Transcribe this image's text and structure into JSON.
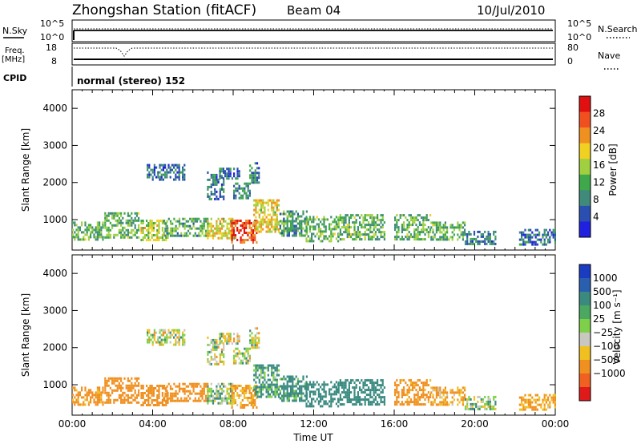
{
  "header": {
    "station": "Zhongshan Station (fitACF)",
    "beam": "Beam 04",
    "date": "10/Jul/2010"
  },
  "status_panels": {
    "nsky_label": "N.Sky",
    "nsearch_label": "N.Search",
    "top_left_ticks": [
      "10^5",
      "10^0"
    ],
    "top_right_ticks": [
      "10^5",
      "10^0"
    ],
    "freq_label": "Freq.",
    "freq_unit": "[MHz]",
    "freq_ticks": [
      "18",
      "8"
    ],
    "nave_label": "Nave",
    "nave_ticks": [
      "80",
      "0"
    ],
    "cpid_label": "CPID",
    "cpid_text": "normal (stereo) 152"
  },
  "colors": {
    "power_scale": [
      "#2020e0",
      "#2a4fb0",
      "#3f8a7a",
      "#3fa84a",
      "#a0d040",
      "#f0d020",
      "#f09020",
      "#f05020",
      "#e01010"
    ],
    "velocity_scale": [
      "#1a3cc0",
      "#2a5fb0",
      "#3a8a80",
      "#4aa860",
      "#7ed04a",
      "#c8c8c0",
      "#f0c020",
      "#f09020",
      "#f06020",
      "#e01a1a"
    ],
    "velocity_gray": "#c8c8c0"
  },
  "chart_data": [
    {
      "type": "heatmap",
      "panel": "power",
      "ylabel": "Slant Range [km]",
      "ylim": [
        180,
        4500
      ],
      "yticks": [
        1000,
        2000,
        3000,
        4000
      ],
      "xlim": [
        0,
        24
      ],
      "xticks": [
        "00:00",
        "04:00",
        "08:00",
        "12:00",
        "16:00",
        "20:00",
        "00:00"
      ],
      "colorbar_label": "Power [dB]",
      "colorbar_ticks": [
        "28",
        "24",
        "20",
        "16",
        "12",
        "8",
        "4"
      ],
      "colorbar_range": [
        0,
        30
      ],
      "regions": [
        {
          "t": [
            3.7,
            5.6
          ],
          "r": [
            2050,
            2500
          ],
          "v": 6
        },
        {
          "t": [
            6.7,
            7.5
          ],
          "r": [
            1550,
            2300
          ],
          "v": 7
        },
        {
          "t": [
            7.3,
            8.3
          ],
          "r": [
            2100,
            2400
          ],
          "v": 7
        },
        {
          "t": [
            8.0,
            8.8
          ],
          "r": [
            1600,
            2000
          ],
          "v": 8
        },
        {
          "t": [
            8.8,
            9.3
          ],
          "r": [
            2000,
            2550
          ],
          "v": 8
        },
        {
          "t": [
            0.0,
            1.5
          ],
          "r": [
            450,
            950
          ],
          "v": 12
        },
        {
          "t": [
            1.6,
            3.3
          ],
          "r": [
            500,
            1200
          ],
          "v": 12
        },
        {
          "t": [
            3.4,
            4.8
          ],
          "r": [
            450,
            1000
          ],
          "v": 16
        },
        {
          "t": [
            4.5,
            6.7
          ],
          "r": [
            550,
            1050
          ],
          "v": 11
        },
        {
          "t": [
            6.7,
            8.1
          ],
          "r": [
            500,
            1050
          ],
          "v": 18
        },
        {
          "t": [
            7.9,
            9.2
          ],
          "r": [
            400,
            1000
          ],
          "v": 25
        },
        {
          "t": [
            9.0,
            10.3
          ],
          "r": [
            700,
            1550
          ],
          "v": 18
        },
        {
          "t": [
            10.3,
            11.7
          ],
          "r": [
            600,
            1250
          ],
          "v": 10
        },
        {
          "t": [
            11.6,
            13.2
          ],
          "r": [
            450,
            1100
          ],
          "v": 12
        },
        {
          "t": [
            13.2,
            15.5
          ],
          "r": [
            500,
            1150
          ],
          "v": 12
        },
        {
          "t": [
            16.0,
            17.8
          ],
          "r": [
            500,
            1150
          ],
          "v": 12
        },
        {
          "t": [
            17.8,
            19.5
          ],
          "r": [
            450,
            950
          ],
          "v": 12
        },
        {
          "t": [
            19.5,
            21.0
          ],
          "r": [
            350,
            700
          ],
          "v": 8
        },
        {
          "t": [
            22.2,
            24.0
          ],
          "r": [
            300,
            750
          ],
          "v": 6
        }
      ]
    },
    {
      "type": "heatmap",
      "panel": "velocity",
      "ylabel": "Slant Range [km]",
      "ylim": [
        180,
        4500
      ],
      "yticks": [
        1000,
        2000,
        3000,
        4000
      ],
      "xlim": [
        0,
        24
      ],
      "xticks": [
        "00:00",
        "04:00",
        "08:00",
        "12:00",
        "16:00",
        "20:00",
        "00:00"
      ],
      "xlabel": "Time UT",
      "colorbar_label": "Velocity [m s⁻¹]",
      "colorbar_ticks": [
        "1000",
        "500",
        "100",
        "25",
        "−25",
        "−100",
        "−500",
        "−1000"
      ],
      "regions": [
        {
          "t": [
            3.7,
            5.6
          ],
          "r": [
            2050,
            2500
          ],
          "v": 0
        },
        {
          "t": [
            6.7,
            7.5
          ],
          "r": [
            1550,
            2300
          ],
          "v": 0
        },
        {
          "t": [
            7.3,
            8.3
          ],
          "r": [
            2100,
            2400
          ],
          "v": 0
        },
        {
          "t": [
            8.0,
            8.8
          ],
          "r": [
            1600,
            2000
          ],
          "v": 0
        },
        {
          "t": [
            8.8,
            9.3
          ],
          "r": [
            2000,
            2550
          ],
          "v": 0
        },
        {
          "t": [
            0.0,
            1.5
          ],
          "r": [
            450,
            950
          ],
          "v": -200
        },
        {
          "t": [
            1.6,
            3.3
          ],
          "r": [
            500,
            1200
          ],
          "v": -300
        },
        {
          "t": [
            3.4,
            4.8
          ],
          "r": [
            450,
            1000
          ],
          "v": -250
        },
        {
          "t": [
            4.5,
            6.7
          ],
          "r": [
            550,
            1050
          ],
          "v": -300
        },
        {
          "t": [
            6.7,
            8.1
          ],
          "r": [
            500,
            1050
          ],
          "v": 80
        },
        {
          "t": [
            7.9,
            9.2
          ],
          "r": [
            400,
            1000
          ],
          "v": -150
        },
        {
          "t": [
            9.0,
            10.3
          ],
          "r": [
            700,
            1550
          ],
          "v": 150
        },
        {
          "t": [
            10.3,
            11.7
          ],
          "r": [
            600,
            1250
          ],
          "v": 200
        },
        {
          "t": [
            11.6,
            13.2
          ],
          "r": [
            450,
            1100
          ],
          "v": 300
        },
        {
          "t": [
            13.2,
            15.5
          ],
          "r": [
            500,
            1150
          ],
          "v": 250
        },
        {
          "t": [
            16.0,
            17.8
          ],
          "r": [
            500,
            1150
          ],
          "v": -200
        },
        {
          "t": [
            17.8,
            19.5
          ],
          "r": [
            450,
            950
          ],
          "v": -120
        },
        {
          "t": [
            19.5,
            21.0
          ],
          "r": [
            350,
            700
          ],
          "v": 60
        },
        {
          "t": [
            22.2,
            24.0
          ],
          "r": [
            300,
            750
          ],
          "v": -150
        }
      ]
    }
  ]
}
